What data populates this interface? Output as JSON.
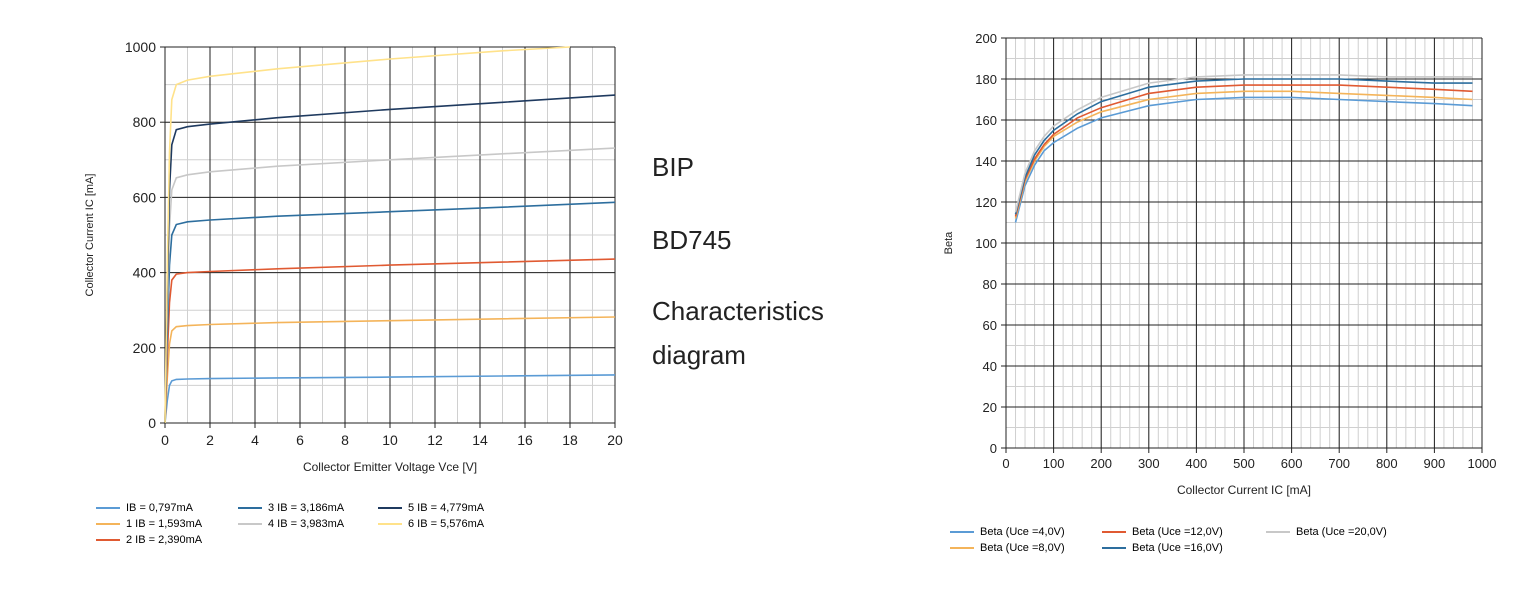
{
  "side_text": {
    "line1": "BIP",
    "line2": "BD745",
    "line3": "Characteristics",
    "line4": "diagram"
  },
  "chart_data": [
    {
      "type": "line",
      "xlabel": "Collector Emitter Voltage Vce [V]",
      "ylabel": "Collector Current IC [mA]",
      "xlim": [
        0,
        20
      ],
      "ylim": [
        0,
        1000
      ],
      "xticks": [
        0,
        2,
        4,
        6,
        8,
        10,
        12,
        14,
        16,
        18,
        20
      ],
      "yticks": [
        0,
        200,
        400,
        600,
        800,
        1000
      ],
      "grid": true,
      "legend_position": "bottom",
      "series": [
        {
          "name": "IB = 0,797mA",
          "color": "#5b9bd5",
          "x": [
            0,
            0.1,
            0.2,
            0.3,
            0.5,
            1,
            2,
            5,
            10,
            15,
            20
          ],
          "y": [
            0,
            60,
            100,
            112,
            116,
            117,
            118,
            120,
            122,
            125,
            128
          ]
        },
        {
          "name": "1 IB = 1,593mA",
          "color": "#f4b45a",
          "x": [
            0,
            0.1,
            0.2,
            0.3,
            0.5,
            1,
            2,
            5,
            10,
            15,
            20
          ],
          "y": [
            0,
            120,
            210,
            245,
            256,
            259,
            262,
            267,
            272,
            277,
            282
          ]
        },
        {
          "name": "2 IB = 2,390mA",
          "color": "#e05a32",
          "x": [
            0,
            0.1,
            0.2,
            0.3,
            0.5,
            1,
            2,
            5,
            10,
            15,
            20
          ],
          "y": [
            0,
            180,
            320,
            380,
            396,
            400,
            403,
            410,
            420,
            428,
            436
          ]
        },
        {
          "name": "3 IB = 3,186mA",
          "color": "#2d6e9e",
          "x": [
            0,
            0.1,
            0.2,
            0.3,
            0.5,
            1,
            2,
            5,
            10,
            15,
            20
          ],
          "y": [
            0,
            240,
            420,
            500,
            528,
            535,
            540,
            550,
            562,
            574,
            587
          ]
        },
        {
          "name": "4 IB = 3,983mA",
          "color": "#c8c8c8",
          "x": [
            0,
            0.1,
            0.2,
            0.3,
            0.5,
            1,
            2,
            5,
            10,
            15,
            20
          ],
          "y": [
            0,
            300,
            520,
            620,
            652,
            660,
            668,
            683,
            700,
            716,
            731
          ]
        },
        {
          "name": "5 IB = 4,779mA",
          "color": "#1f3a5f",
          "x": [
            0,
            0.1,
            0.2,
            0.3,
            0.5,
            1,
            2,
            5,
            10,
            15,
            20
          ],
          "y": [
            0,
            360,
            620,
            740,
            780,
            788,
            795,
            812,
            834,
            853,
            872
          ]
        },
        {
          "name": "6 IB = 5,576mA",
          "color": "#ffe28a",
          "x": [
            0,
            0.1,
            0.2,
            0.3,
            0.5,
            1,
            2,
            5,
            10,
            15,
            18
          ],
          "y": [
            0,
            420,
            720,
            860,
            900,
            912,
            922,
            942,
            968,
            990,
            1000
          ]
        }
      ]
    },
    {
      "type": "line",
      "xlabel": "Collector Current IC [mA]",
      "ylabel": "Beta",
      "xlim": [
        0,
        1000
      ],
      "ylim": [
        0,
        200
      ],
      "xticks": [
        0,
        100,
        200,
        300,
        400,
        500,
        600,
        700,
        800,
        900,
        1000
      ],
      "yticks": [
        0,
        20,
        40,
        60,
        80,
        100,
        120,
        140,
        160,
        180,
        200
      ],
      "grid": true,
      "legend_position": "bottom",
      "series": [
        {
          "name": "Beta (Uce =4,0V)",
          "color": "#5b9bd5",
          "x": [
            20,
            40,
            60,
            80,
            100,
            150,
            200,
            300,
            400,
            500,
            600,
            700,
            800,
            900,
            980
          ],
          "y": [
            110,
            128,
            138,
            145,
            149,
            156,
            161,
            167,
            170,
            171,
            171,
            170,
            169,
            168,
            167
          ]
        },
        {
          "name": "Beta (Uce =8,0V)",
          "color": "#f4b45a",
          "x": [
            20,
            40,
            60,
            80,
            100,
            150,
            200,
            300,
            400,
            500,
            600,
            700,
            800,
            900,
            980
          ],
          "y": [
            112,
            130,
            140,
            147,
            152,
            159,
            164,
            170,
            173,
            174,
            174,
            173,
            172,
            171,
            170
          ]
        },
        {
          "name": "Beta (Uce =12,0V)",
          "color": "#e05a32",
          "x": [
            20,
            40,
            60,
            80,
            100,
            150,
            200,
            300,
            400,
            500,
            600,
            700,
            800,
            900,
            980
          ],
          "y": [
            113,
            131,
            141,
            148,
            153,
            161,
            166,
            173,
            176,
            177,
            177,
            177,
            176,
            175,
            174
          ]
        },
        {
          "name": "Beta (Uce =16,0V)",
          "color": "#2d6e9e",
          "x": [
            20,
            40,
            60,
            80,
            100,
            150,
            200,
            300,
            400,
            500,
            600,
            700,
            800,
            900,
            980
          ],
          "y": [
            114,
            132,
            143,
            150,
            155,
            163,
            169,
            176,
            179,
            180,
            180,
            180,
            179,
            178,
            178
          ]
        },
        {
          "name": "Beta (Uce =20,0V)",
          "color": "#c8c8c8",
          "x": [
            20,
            40,
            60,
            80,
            100,
            150,
            200,
            300,
            400,
            500,
            600,
            700,
            800,
            900,
            980
          ],
          "y": [
            115,
            134,
            145,
            152,
            157,
            165,
            171,
            178,
            181,
            182,
            182,
            182,
            181,
            181,
            181
          ]
        }
      ]
    }
  ]
}
